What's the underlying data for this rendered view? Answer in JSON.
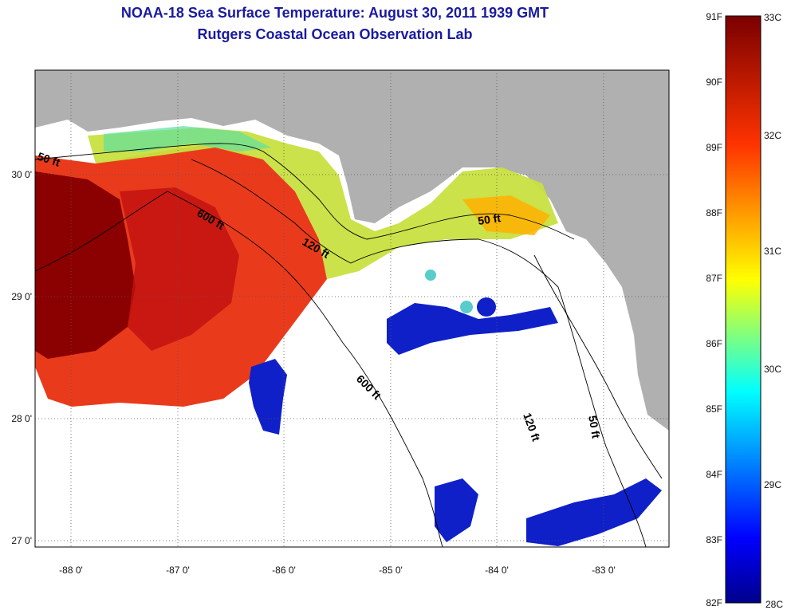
{
  "title": {
    "line1": "NOAA-18 Sea Surface Temperature:  August 30, 2011 1939 GMT",
    "line2": "Rutgers Coastal Ocean Observation Lab"
  },
  "map": {
    "lon_ticks": [
      "-88 0'",
      "-87 0'",
      "-86 0'",
      "-85 0'",
      "-84 0'",
      "-83 0'"
    ],
    "lat_ticks": [
      "30 0'",
      "29 0'",
      "28 0'",
      "27 0'"
    ],
    "contour_labels": [
      "50 ft",
      "600 ft",
      "120 ft",
      "50 ft",
      "600 ft",
      "120 ft",
      "50 ft"
    ],
    "colors": {
      "land": "#b0b0b0",
      "no_data": "#ffffff",
      "warm": "#8b0000",
      "cold": "#00008b"
    }
  },
  "colorbar": {
    "f_labels": [
      "91F",
      "90F",
      "89F",
      "88F",
      "87F",
      "86F",
      "85F",
      "84F",
      "83F",
      "82F"
    ],
    "c_labels": [
      "33C",
      "32C",
      "31C",
      "30C",
      "29C",
      "28C"
    ],
    "range_f": [
      82,
      91
    ],
    "range_c": [
      28,
      33
    ]
  }
}
